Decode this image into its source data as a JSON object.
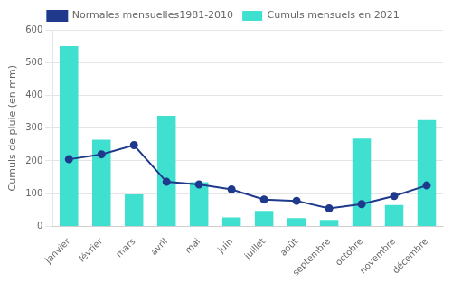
{
  "chart_data": {
    "type": "bar",
    "categories": [
      "janvier",
      "février",
      "mars",
      "avril",
      "mai",
      "juin",
      "juillet",
      "août",
      "septembre",
      "octobre",
      "novembre",
      "décembre"
    ],
    "series": [
      {
        "name": "Cumuls mensuels en 2021",
        "type": "bar",
        "color": "#40E0D0",
        "values": [
          550,
          265,
          98,
          338,
          135,
          27,
          47,
          25,
          20,
          268,
          65,
          325
        ]
      },
      {
        "name": "Normales mensuelles1981-2010",
        "type": "line",
        "color": "#1F3A8C",
        "marker": "circle",
        "line_style": "solid",
        "values": [
          205,
          220,
          248,
          136,
          128,
          113,
          82,
          78,
          55,
          68,
          93,
          125
        ]
      }
    ],
    "ylabel": "Cumuls de pluie (en mm)",
    "ylim": [
      0,
      600
    ],
    "yticks": [
      0,
      100,
      200,
      300,
      400,
      500,
      600
    ],
    "grid": "y",
    "legend": "top"
  }
}
